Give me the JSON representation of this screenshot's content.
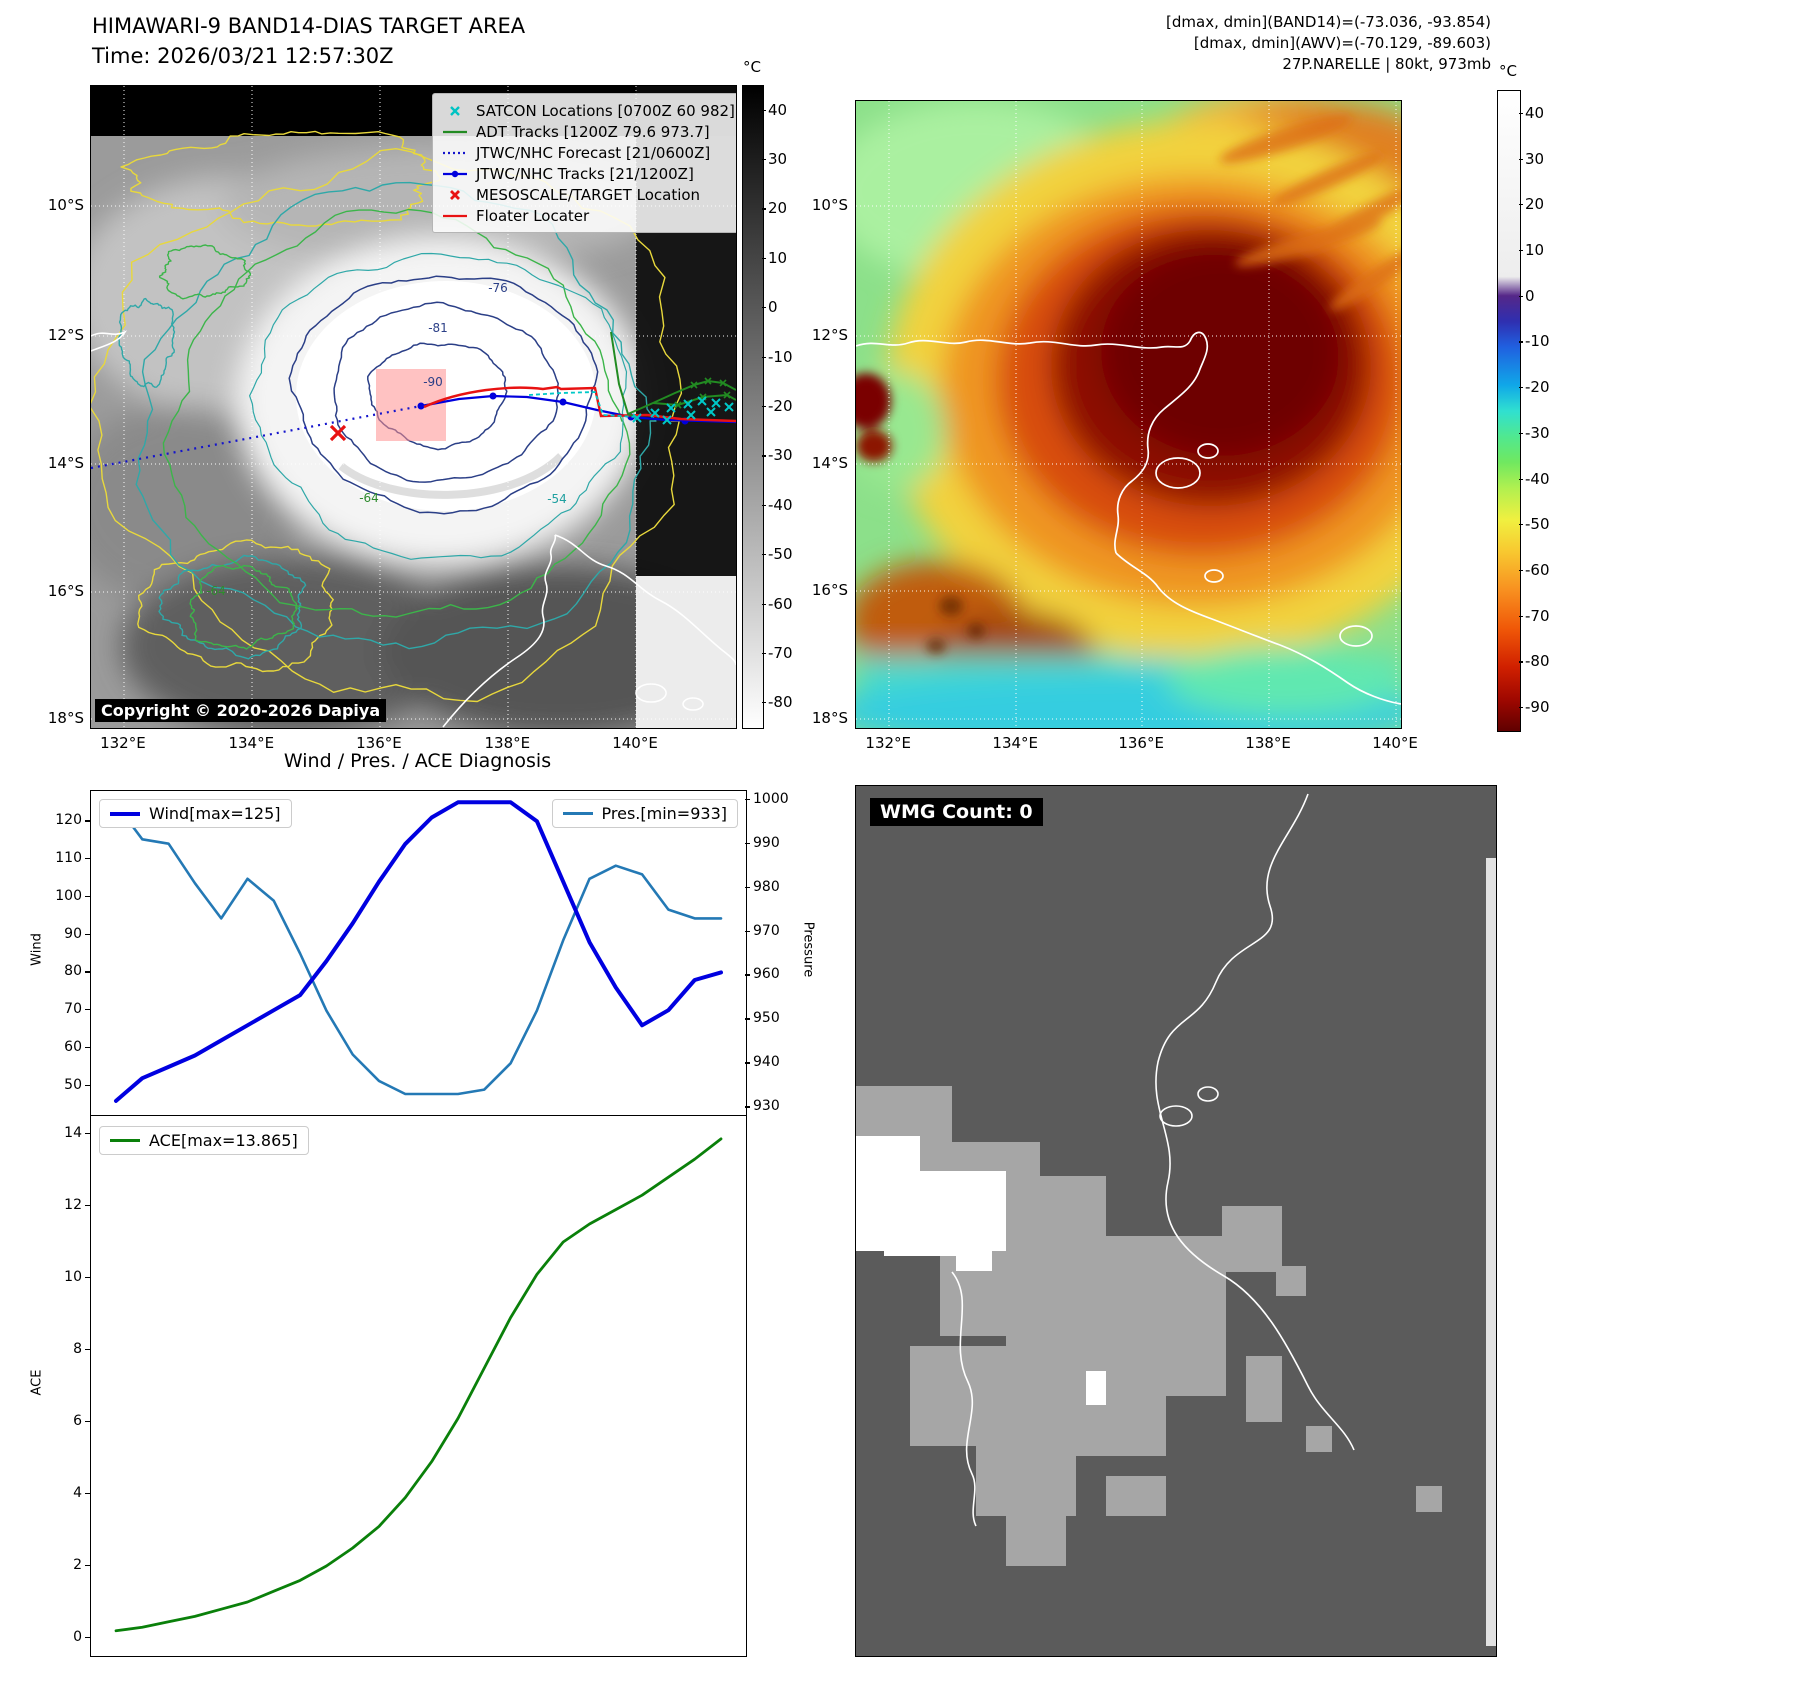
{
  "panel_band14": {
    "title": "HIMAWARI-9 BAND14-DIAS TARGET AREA",
    "subtitle": "Time: 2026/03/21 12:57:30Z",
    "copyright": "Copyright © 2020-2026 Dapiya",
    "colorbar_unit": "°C",
    "colorbar_ticks": [
      40,
      30,
      20,
      10,
      0,
      -10,
      -20,
      -30,
      -40,
      -50,
      -60,
      -70,
      -80
    ],
    "lat_ticks": [
      "10°S",
      "12°S",
      "14°S",
      "16°S",
      "18°S"
    ],
    "lon_ticks": [
      "132°E",
      "134°E",
      "136°E",
      "138°E",
      "140°E"
    ],
    "contour_labels": [
      "-76",
      "-81",
      "-90",
      "-64",
      "-54",
      "-64"
    ],
    "legend": [
      {
        "label": "SATCON Locations [0700Z 60 982]"
      },
      {
        "label": "ADT Tracks [1200Z 79.6 973.7]"
      },
      {
        "label": "JTWC/NHC Forecast [21/0600Z]"
      },
      {
        "label": "JTWC/NHC Tracks [21/1200Z]"
      },
      {
        "label": "MESOSCALE/TARGET Location"
      },
      {
        "label": "Floater Locater"
      }
    ]
  },
  "panel_awv": {
    "header_lines": [
      "[dmax, dmin](BAND14)=(-73.036, -93.854)",
      "[dmax, dmin](AWV)=(-70.129, -89.603)",
      "27P.NARELLE | 80kt, 973mb"
    ],
    "colorbar_unit": "°C",
    "colorbar_ticks": [
      40,
      30,
      20,
      10,
      0,
      -10,
      -20,
      -30,
      -40,
      -50,
      -60,
      -70,
      -80,
      -90
    ],
    "lat_ticks": [
      "10°S",
      "12°S",
      "14°S",
      "16°S",
      "18°S"
    ],
    "lon_ticks": [
      "132°E",
      "134°E",
      "136°E",
      "138°E",
      "140°E"
    ]
  },
  "panel_wmg": {
    "label": "WMG Count: 0"
  },
  "chart_data": [
    {
      "type": "line",
      "title": "Wind / Pres. / ACE Diagnosis",
      "series": [
        {
          "name": "Wind[max=125]",
          "axis": "left",
          "color": "#0000e0",
          "values": [
            46,
            52,
            55,
            58,
            62,
            66,
            70,
            74,
            83,
            93,
            104,
            114,
            121,
            125,
            125,
            125,
            120,
            104,
            88,
            76,
            66,
            70,
            78,
            80
          ]
        },
        {
          "name": "Pres.[min=933]",
          "axis": "right",
          "color": "#2479b5",
          "values": [
            999,
            991,
            990,
            981,
            973,
            982,
            977,
            965,
            952,
            942,
            936,
            933,
            933,
            933,
            934,
            940,
            952,
            968,
            982,
            985,
            983,
            975,
            973,
            973
          ]
        }
      ],
      "left_axis": {
        "label": "Wind",
        "ticks": [
          50,
          60,
          70,
          80,
          90,
          100,
          110,
          120
        ],
        "range": [
          42,
          128
        ]
      },
      "right_axis": {
        "label": "Pressure",
        "ticks": [
          930,
          940,
          950,
          960,
          970,
          980,
          990,
          1000
        ],
        "range": [
          928,
          1002
        ]
      }
    },
    {
      "type": "line",
      "series": [
        {
          "name": "ACE[max=13.865]",
          "axis": "left",
          "color": "#0a800a",
          "values": [
            0.2,
            0.3,
            0.45,
            0.6,
            0.8,
            1.0,
            1.3,
            1.6,
            2.0,
            2.5,
            3.1,
            3.9,
            4.9,
            6.1,
            7.5,
            8.9,
            10.1,
            11.0,
            11.5,
            11.9,
            12.3,
            12.8,
            13.3,
            13.865
          ]
        }
      ],
      "left_axis": {
        "label": "ACE",
        "ticks": [
          0,
          2,
          4,
          6,
          8,
          10,
          12,
          14
        ],
        "range": [
          -0.5,
          14.5
        ]
      }
    }
  ]
}
